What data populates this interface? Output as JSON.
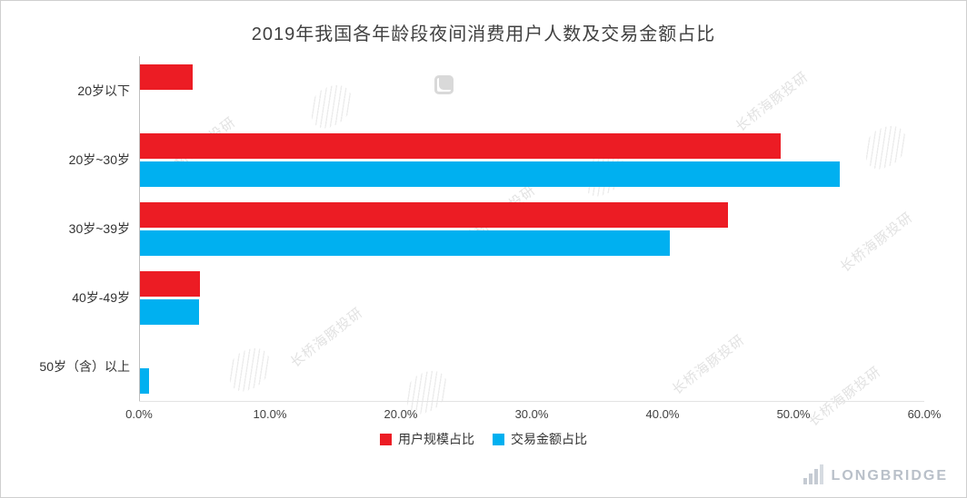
{
  "title": "2019年我国各年龄段夜间消费用户人数及交易金额占比",
  "watermark_text": "长桥海豚投研",
  "brand": {
    "name": "LONGBRIDGE"
  },
  "chart_data": {
    "type": "bar",
    "orientation": "horizontal",
    "title": "2019年我国各年龄段夜间消费用户人数及交易金额占比",
    "categories": [
      "20岁以下",
      "20岁~30岁",
      "30岁~39岁",
      "40岁-49岁",
      "50岁（含）以上"
    ],
    "series": [
      {
        "name": "用户规模占比",
        "color": "#ec1c24",
        "values": [
          4.0,
          49.0,
          45.0,
          4.6,
          0
        ]
      },
      {
        "name": "交易金额占比",
        "color": "#00b0f0",
        "values": [
          0,
          53.5,
          40.5,
          4.5,
          0.7
        ]
      }
    ],
    "xlim": [
      0,
      60
    ],
    "x_tick_labels": [
      "0.0%",
      "10.0%",
      "20.0%",
      "30.0%",
      "40.0%",
      "50.0%",
      "60.0%"
    ],
    "xlabel": "",
    "ylabel": "",
    "grid": false,
    "legend_position": "bottom",
    "unit": "percent"
  }
}
